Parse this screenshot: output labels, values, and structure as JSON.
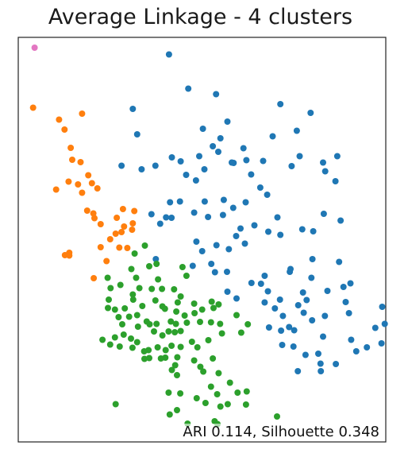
{
  "chart_data": {
    "type": "scatter",
    "title": "Average Linkage - 4 clusters",
    "xlabel": "",
    "ylabel": "",
    "xlim": [
      0,
      100
    ],
    "ylim": [
      0,
      100
    ],
    "grid": false,
    "annotation": "ARI 0.114, Silhouette 0.348",
    "series": [
      {
        "color": "#1f77b4",
        "points": [
          [
            44.1,
            96.3
          ],
          [
            49.4,
            87.7
          ],
          [
            34.2,
            82.6
          ],
          [
            57.0,
            86.3
          ],
          [
            74.6,
            83.8
          ],
          [
            82.9,
            81.6
          ],
          [
            79.1,
            77.1
          ],
          [
            53.4,
            77.6
          ],
          [
            60.1,
            79.4
          ],
          [
            35.4,
            76.2
          ],
          [
            58.2,
            75.2
          ],
          [
            56.1,
            73.2
          ],
          [
            64.5,
            72.7
          ],
          [
            72.5,
            75.7
          ],
          [
            57.6,
            71.8
          ],
          [
            65.3,
            69.7
          ],
          [
            61.8,
            69.0
          ],
          [
            69.9,
            69.5
          ],
          [
            79.9,
            70.7
          ],
          [
            90.2,
            70.7
          ],
          [
            31.1,
            68.3
          ],
          [
            40.4,
            68.3
          ],
          [
            36.6,
            67.4
          ],
          [
            47.3,
            69.4
          ],
          [
            44.9,
            70.4
          ],
          [
            52.4,
            70.7
          ],
          [
            53.8,
            67.4
          ],
          [
            48.8,
            66.0
          ],
          [
            51.5,
            64.6
          ],
          [
            61.3,
            69.1
          ],
          [
            66.6,
            66.1
          ],
          [
            77.7,
            68.2
          ],
          [
            86.3,
            69.1
          ],
          [
            86.9,
            66.9
          ],
          [
            89.7,
            64.4
          ],
          [
            69.1,
            62.8
          ],
          [
            71.0,
            61.0
          ],
          [
            65.1,
            59.1
          ],
          [
            61.7,
            57.7
          ],
          [
            59.1,
            59.7
          ],
          [
            53.9,
            59.3
          ],
          [
            47.1,
            59.3
          ],
          [
            44.4,
            59.1
          ],
          [
            51.0,
            56.5
          ],
          [
            44.8,
            55.2
          ],
          [
            39.3,
            56.1
          ],
          [
            41.7,
            53.7
          ],
          [
            43.3,
            55.3
          ],
          [
            54.8,
            55.4
          ],
          [
            58.9,
            55.9
          ],
          [
            63.7,
            52.5
          ],
          [
            67.5,
            53.3
          ],
          [
            71.3,
            51.7
          ],
          [
            74.6,
            50.9
          ],
          [
            73.8,
            55.3
          ],
          [
            80.6,
            52.3
          ],
          [
            83.6,
            51.8
          ],
          [
            86.5,
            56.2
          ],
          [
            91.1,
            54.5
          ],
          [
            60.5,
            47.3
          ],
          [
            62.5,
            50.6
          ],
          [
            64.9,
            48.7
          ],
          [
            57.1,
            48.3
          ],
          [
            53.2,
            46.8
          ],
          [
            51.6,
            49.2
          ],
          [
            40.5,
            44.8
          ],
          [
            50.6,
            43.1
          ],
          [
            55.7,
            43.6
          ],
          [
            56.7,
            41.5
          ],
          [
            60.0,
            41.6
          ],
          [
            70.3,
            40.6
          ],
          [
            69.3,
            38.6
          ],
          [
            66.7,
            38.8
          ],
          [
            62.6,
            34.9
          ],
          [
            60.1,
            36.6
          ],
          [
            70.3,
            33.9
          ],
          [
            71.2,
            36.7
          ],
          [
            74.5,
            34.6
          ],
          [
            73.1,
            32.4
          ],
          [
            75.3,
            30.5
          ],
          [
            79.5,
            33.2
          ],
          [
            80.8,
            36.4
          ],
          [
            81.8,
            34.5
          ],
          [
            81.0,
            31.3
          ],
          [
            83.3,
            29.4
          ],
          [
            86.8,
            30.5
          ],
          [
            87.5,
            36.8
          ],
          [
            92.5,
            34.0
          ],
          [
            91.9,
            37.8
          ],
          [
            93.8,
            38.7
          ],
          [
            90.7,
            44.1
          ],
          [
            83.1,
            40.1
          ],
          [
            83.4,
            44.8
          ],
          [
            77.4,
            42.3
          ],
          [
            77.2,
            41.6
          ],
          [
            71.5,
            27.6
          ],
          [
            77.0,
            27.7
          ],
          [
            74.8,
            26.8
          ],
          [
            78.4,
            26.9
          ],
          [
            86.3,
            25.3
          ],
          [
            94.0,
            24.5
          ],
          [
            75.1,
            23.2
          ],
          [
            78.2,
            22.8
          ],
          [
            81.5,
            20.7
          ],
          [
            85.0,
            21.0
          ],
          [
            85.6,
            18.5
          ],
          [
            85.7,
            16.6
          ],
          [
            79.4,
            16.6
          ],
          [
            89.8,
            18.4
          ],
          [
            95.4,
            21.6
          ],
          [
            93.4,
            31.2
          ],
          [
            98.3,
            22.6
          ],
          [
            100.6,
            27.5
          ],
          [
            102.3,
            23.6
          ],
          [
            103.2,
            28.5
          ],
          [
            102.5,
            32.8
          ]
        ]
      },
      {
        "color": "#ff7f0e",
        "points": [
          [
            6.9,
            82.9
          ],
          [
            14.0,
            79.9
          ],
          [
            15.5,
            77.4
          ],
          [
            20.3,
            81.4
          ],
          [
            17.2,
            72.8
          ],
          [
            17.6,
            69.8
          ],
          [
            19.9,
            69.2
          ],
          [
            16.6,
            64.3
          ],
          [
            19.2,
            63.6
          ],
          [
            22.0,
            65.9
          ],
          [
            23.0,
            63.9
          ],
          [
            24.5,
            62.6
          ],
          [
            13.2,
            62.3
          ],
          [
            20.3,
            61.5
          ],
          [
            21.7,
            57.0
          ],
          [
            23.4,
            56.3
          ],
          [
            23.7,
            55.1
          ],
          [
            25.4,
            53.6
          ],
          [
            29.8,
            55.2
          ],
          [
            31.5,
            57.4
          ],
          [
            34.6,
            56.9
          ],
          [
            29.5,
            51.2
          ],
          [
            31.1,
            51.6
          ],
          [
            28.0,
            49.8
          ],
          [
            30.5,
            47.7
          ],
          [
            32.7,
            47.6
          ],
          [
            25.4,
            47.8
          ],
          [
            27.0,
            44.3
          ],
          [
            16.8,
            46.4
          ],
          [
            16.8,
            45.7
          ],
          [
            15.6,
            45.8
          ],
          [
            23.5,
            40.0
          ],
          [
            34.0,
            52.2
          ],
          [
            31.8,
            53.0
          ],
          [
            34.2,
            53.8
          ]
        ]
      },
      {
        "color": "#2ca02c",
        "points": [
          [
            34.7,
            46.2
          ],
          [
            37.5,
            48.2
          ],
          [
            33.8,
            42.3
          ],
          [
            38.7,
            43.0
          ],
          [
            40.7,
            43.6
          ],
          [
            35.1,
            40.1
          ],
          [
            41.1,
            39.7
          ],
          [
            47.8,
            42.8
          ],
          [
            48.9,
            40.6
          ],
          [
            42.2,
            37.3
          ],
          [
            45.5,
            37.2
          ],
          [
            39.4,
            37.3
          ],
          [
            36.0,
            37.5
          ],
          [
            34.2,
            35.9
          ],
          [
            30.8,
            38.3
          ],
          [
            27.3,
            40.1
          ],
          [
            28.1,
            37.5
          ],
          [
            27.6,
            34.6
          ],
          [
            27.4,
            32.5
          ],
          [
            29.3,
            32.1
          ],
          [
            32.0,
            32.4
          ],
          [
            34.3,
            34.6
          ],
          [
            36.8,
            33.0
          ],
          [
            40.4,
            34.4
          ],
          [
            42.3,
            32.9
          ],
          [
            43.0,
            32.3
          ],
          [
            46.1,
            31.6
          ],
          [
            46.5,
            33.9
          ],
          [
            47.3,
            35.4
          ],
          [
            51.0,
            33.6
          ],
          [
            53.2,
            32.1
          ],
          [
            48.4,
            30.6
          ],
          [
            44.6,
            29.1
          ],
          [
            40.7,
            28.5
          ],
          [
            38.0,
            29.1
          ],
          [
            35.4,
            30.7
          ],
          [
            33.2,
            30.3
          ],
          [
            31.3,
            28.4
          ],
          [
            30.3,
            30.2
          ],
          [
            35.6,
            27.8
          ],
          [
            38.8,
            28.4
          ],
          [
            40.0,
            26.6
          ],
          [
            42.3,
            25.6
          ],
          [
            44.0,
            26.6
          ],
          [
            45.7,
            26.4
          ],
          [
            47.3,
            26.7
          ],
          [
            46.0,
            28.5
          ],
          [
            49.0,
            28.8
          ],
          [
            52.6,
            29.0
          ],
          [
            51.1,
            31.2
          ],
          [
            55.6,
            28.9
          ],
          [
            58.1,
            28.5
          ],
          [
            56.3,
            32.5
          ],
          [
            55.8,
            34.1
          ],
          [
            57.7,
            33.4
          ],
          [
            62.6,
            30.7
          ],
          [
            65.7,
            28.4
          ],
          [
            63.9,
            26.3
          ],
          [
            58.6,
            26.1
          ],
          [
            54.9,
            24.4
          ],
          [
            51.9,
            22.6
          ],
          [
            50.4,
            24.0
          ],
          [
            47.3,
            22.7
          ],
          [
            44.8,
            23.0
          ],
          [
            43.2,
            21.9
          ],
          [
            41.0,
            22.6
          ],
          [
            38.5,
            21.9
          ],
          [
            37.3,
            21.6
          ],
          [
            35.4,
            23.9
          ],
          [
            34.1,
            22.5
          ],
          [
            33.7,
            24.8
          ],
          [
            31.7,
            25.8
          ],
          [
            30.6,
            22.8
          ],
          [
            29.3,
            25.1
          ],
          [
            28.0,
            23.3
          ],
          [
            25.9,
            24.5
          ],
          [
            37.4,
            19.7
          ],
          [
            38.7,
            19.9
          ],
          [
            41.9,
            19.8
          ],
          [
            43.1,
            20.0
          ],
          [
            46.4,
            20.1
          ],
          [
            45.8,
            18.1
          ],
          [
            44.9,
            16.9
          ],
          [
            46.3,
            15.6
          ],
          [
            52.7,
            17.7
          ],
          [
            51.0,
            19.3
          ],
          [
            53.5,
            16.5
          ],
          [
            56.1,
            19.8
          ],
          [
            57.7,
            16.1
          ],
          [
            60.8,
            13.7
          ],
          [
            55.6,
            12.7
          ],
          [
            57.3,
            10.8
          ],
          [
            60.2,
            8.3
          ],
          [
            58.2,
            7.7
          ],
          [
            54.1,
            8.6
          ],
          [
            51.7,
            9.8
          ],
          [
            47.2,
            11.0
          ],
          [
            44.0,
            11.2
          ],
          [
            46.3,
            6.8
          ],
          [
            44.3,
            5.7
          ],
          [
            49.2,
            3.4
          ],
          [
            56.6,
            4.0
          ],
          [
            57.4,
            3.3
          ],
          [
            65.4,
            11.5
          ],
          [
            65.2,
            8.2
          ],
          [
            62.9,
            11.2
          ],
          [
            73.7,
            5.2
          ],
          [
            29.5,
            8.3
          ]
        ]
      },
      {
        "color": "#e377c2",
        "points": [
          [
            7.3,
            98.0
          ]
        ]
      }
    ]
  }
}
